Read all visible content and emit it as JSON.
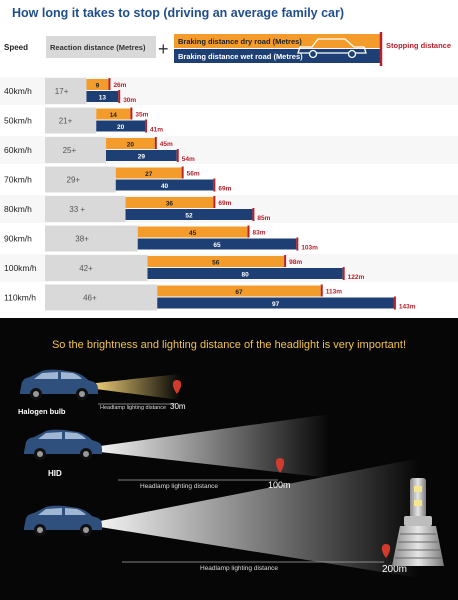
{
  "chart_data": {
    "type": "bar",
    "title": "How long it takes to stop (driving an average family car)",
    "legend": {
      "speed": "Speed",
      "reaction": "Reaction distance (Metres)",
      "plus": "+",
      "dry": "Braking distance dry road (Metres)",
      "wet": "Braking distance wet road (Metres)",
      "stopping": "Stopping distance"
    },
    "categories": [
      "40km/h",
      "50km/h",
      "60km/h",
      "70km/h",
      "80km/h",
      "90km/h",
      "100km/h",
      "110km/h"
    ],
    "reaction": [
      17,
      21,
      25,
      29,
      33,
      38,
      42,
      46
    ],
    "reaction_labels": [
      "17+",
      "21+",
      "25+",
      "29+",
      "33 +",
      "38+",
      "42+",
      "46+"
    ],
    "series": [
      {
        "name": "Braking distance dry road (Metres)",
        "values": [
          9,
          14,
          20,
          27,
          36,
          45,
          56,
          67
        ],
        "totals": [
          "26m",
          "35m",
          "45m",
          "56m",
          "69m",
          "83m",
          "98m",
          "113m"
        ]
      },
      {
        "name": "Braking distance wet road (Metres)",
        "values": [
          13,
          20,
          29,
          40,
          52,
          65,
          80,
          97
        ],
        "totals": [
          "30m",
          "41m",
          "54m",
          "69m",
          "85m",
          "103m",
          "122m",
          "143m"
        ]
      }
    ],
    "colors": {
      "title": "#1f4e8c",
      "reaction": "#d9d9d9",
      "reaction_text": "#555555",
      "dry": "#f39c2b",
      "wet": "#1d3f73",
      "stop_marker": "#b8202a"
    }
  },
  "headlights": {
    "caption": "So the brightness and lighting distance of the headlight is very important!",
    "rows": [
      {
        "label": "Halogen bulb",
        "distance_label": "Headlamp lighting distance",
        "distance": "30m",
        "beam_color": "#e8c468"
      },
      {
        "label": "HID",
        "distance_label": "Headlamp lighting distance",
        "distance": "100m",
        "beam_color": "#ffffff"
      },
      {
        "label": "",
        "distance_label": "Headlamp lighting distance",
        "distance": "200m",
        "beam_color": "#ffffff"
      }
    ],
    "colors": {
      "background": "#060606",
      "caption": "#f2c24b",
      "marker": "#d13b2e",
      "car": "#2f4f7c"
    }
  }
}
